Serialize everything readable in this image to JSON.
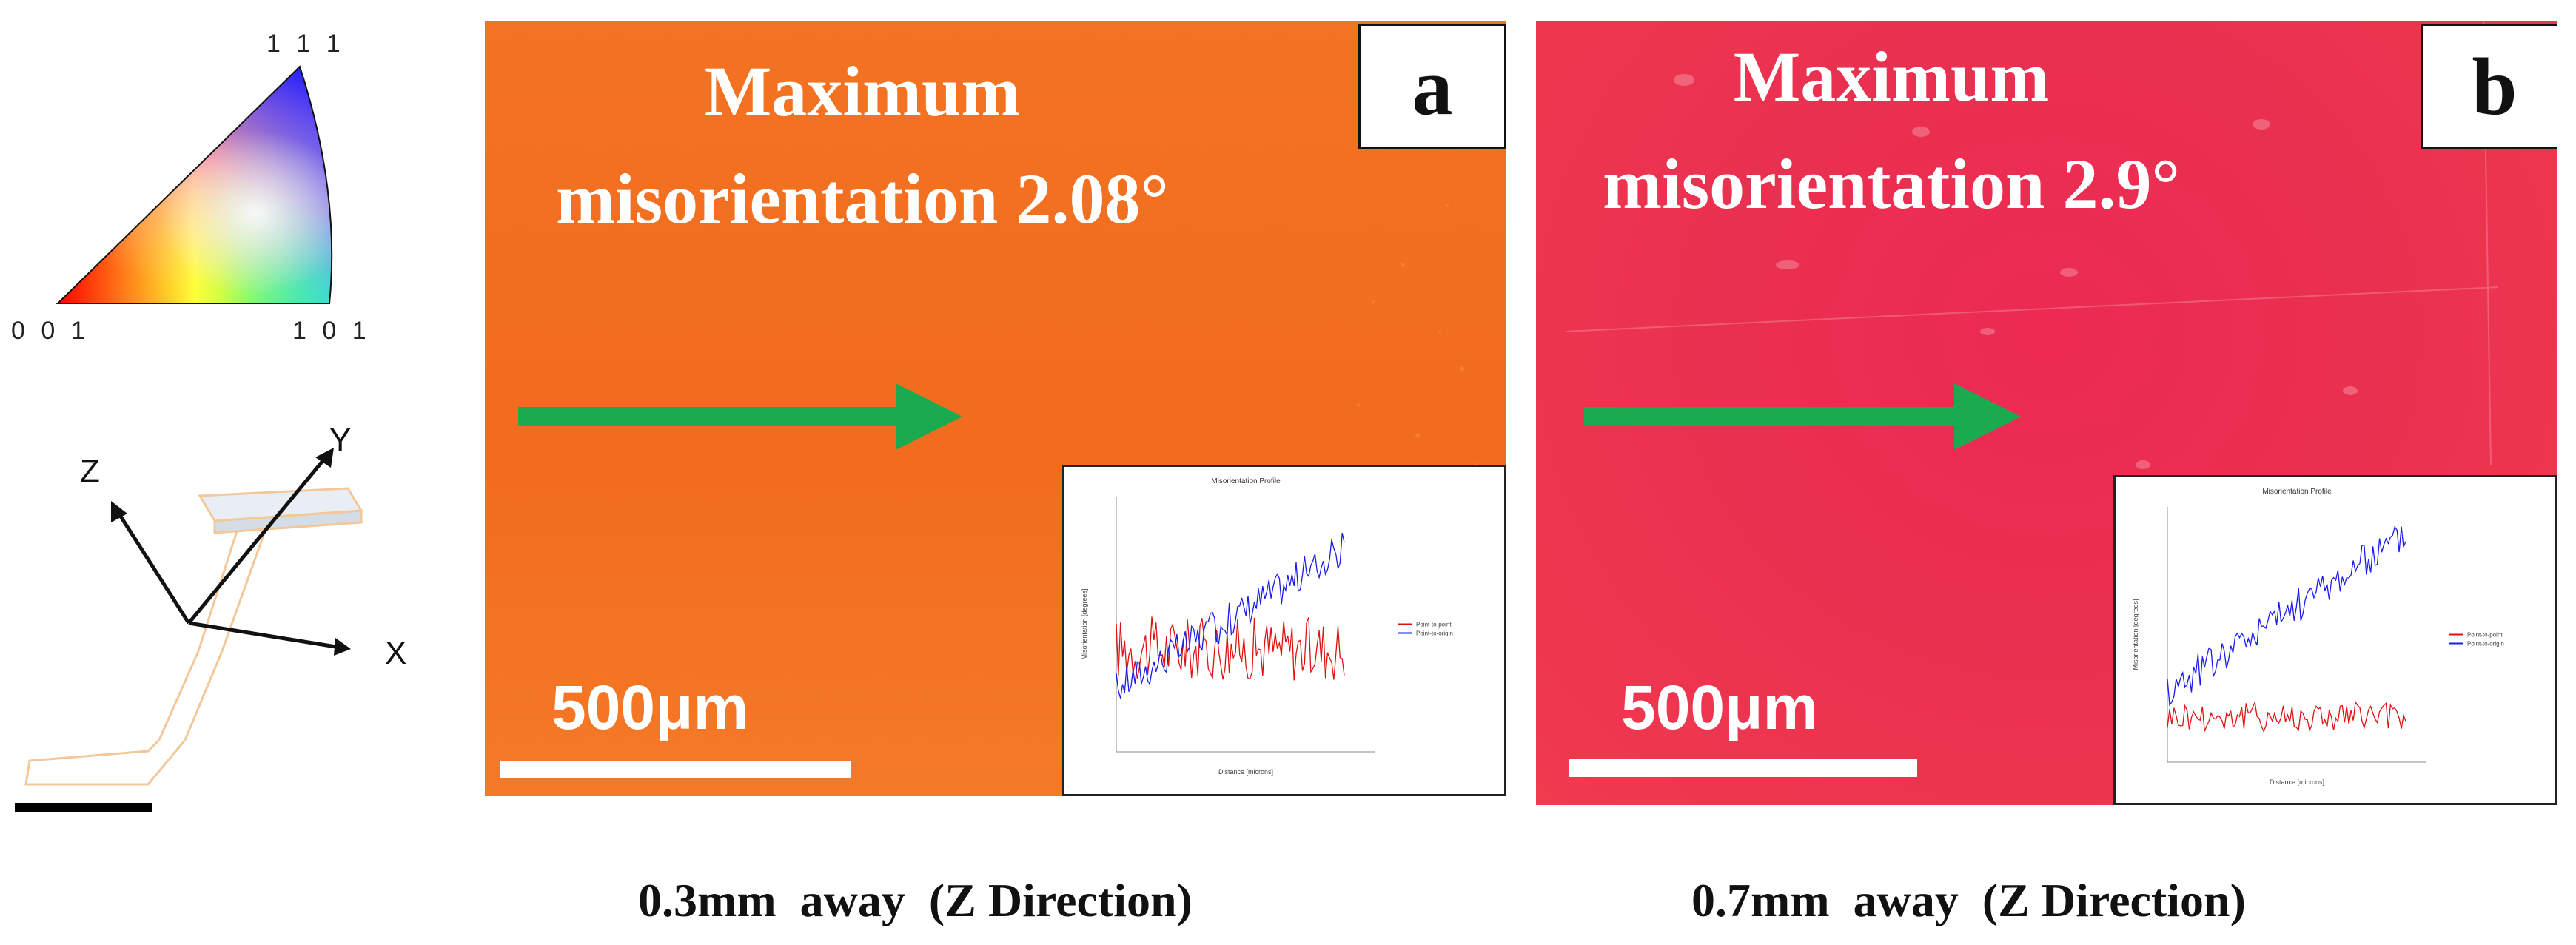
{
  "ipf_legend": {
    "corner_111": "1 1 1",
    "corner_001": "0 0 1",
    "corner_101": "1 0 1"
  },
  "axes": {
    "z": "Z",
    "y": "Y",
    "x": "X"
  },
  "panels": [
    {
      "letter": "a",
      "headline_line1": "Maximum",
      "headline_line2": "misorientation 2.08°",
      "scale_label": "500μm",
      "caption": "0.3mm  away  (Z Direction)",
      "color": "#f37322",
      "inset": {
        "title": "Misorientation Profile",
        "xlabel": "Distance [microns]",
        "ylabel": "Misorientation [degrees]",
        "legend": [
          "Point-to-point",
          "Point-to-origin"
        ]
      }
    },
    {
      "letter": "b",
      "headline_line1": "Maximum",
      "headline_line2": "misorientation 2.9°",
      "scale_label": "500μm",
      "caption": "0.7mm  away  (Z Direction)",
      "color": "#ec2a52",
      "inset": {
        "title": "Misorientation Profile",
        "xlabel": "Distance [microns]",
        "ylabel": "Misorientation [degrees]",
        "legend": [
          "Point-to-point",
          "Point-to-origin"
        ]
      }
    }
  ],
  "colors": {
    "arrow": "#1aaa50",
    "series_p2p": "#e01010",
    "series_p2o": "#1a1aee"
  }
}
